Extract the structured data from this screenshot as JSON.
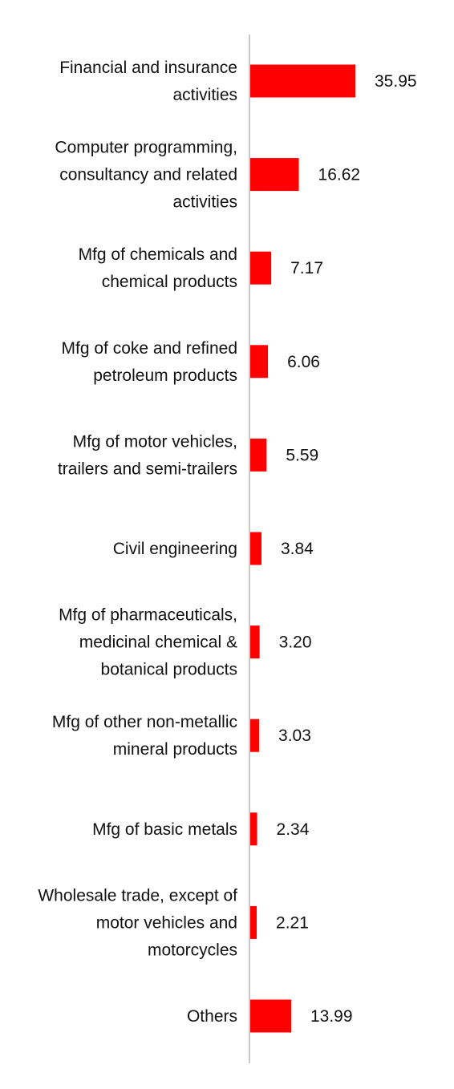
{
  "chart_data": {
    "type": "bar",
    "orientation": "horizontal",
    "categories": [
      [
        "Financial and insurance",
        "activities"
      ],
      [
        "Computer programming,",
        "consultancy and related",
        "activities"
      ],
      [
        "Mfg of chemicals and",
        "chemical products"
      ],
      [
        "Mfg of coke and refined",
        "petroleum products"
      ],
      [
        "Mfg of motor vehicles,",
        "trailers and semi-trailers"
      ],
      [
        "Civil engineering"
      ],
      [
        "Mfg of pharmaceuticals,",
        "medicinal chemical &",
        "botanical products"
      ],
      [
        "Mfg of other non-metallic",
        "mineral products"
      ],
      [
        "Mfg of basic metals"
      ],
      [
        "Wholesale trade, except of",
        "motor vehicles and",
        "motorcycles"
      ],
      [
        "Others"
      ]
    ],
    "values": [
      35.95,
      16.62,
      7.17,
      6.06,
      5.59,
      3.84,
      3.2,
      3.03,
      2.34,
      2.21,
      13.99
    ],
    "value_labels": [
      "35.95",
      "16.62",
      "7.17",
      "6.06",
      "5.59",
      "3.84",
      "3.20",
      "3.03",
      "2.34",
      "2.21",
      "13.99"
    ],
    "bar_color": "#ff0000",
    "axis_color": "#c8c8c8",
    "xlim": [
      0,
      40
    ],
    "grid": false,
    "legend": "none"
  }
}
